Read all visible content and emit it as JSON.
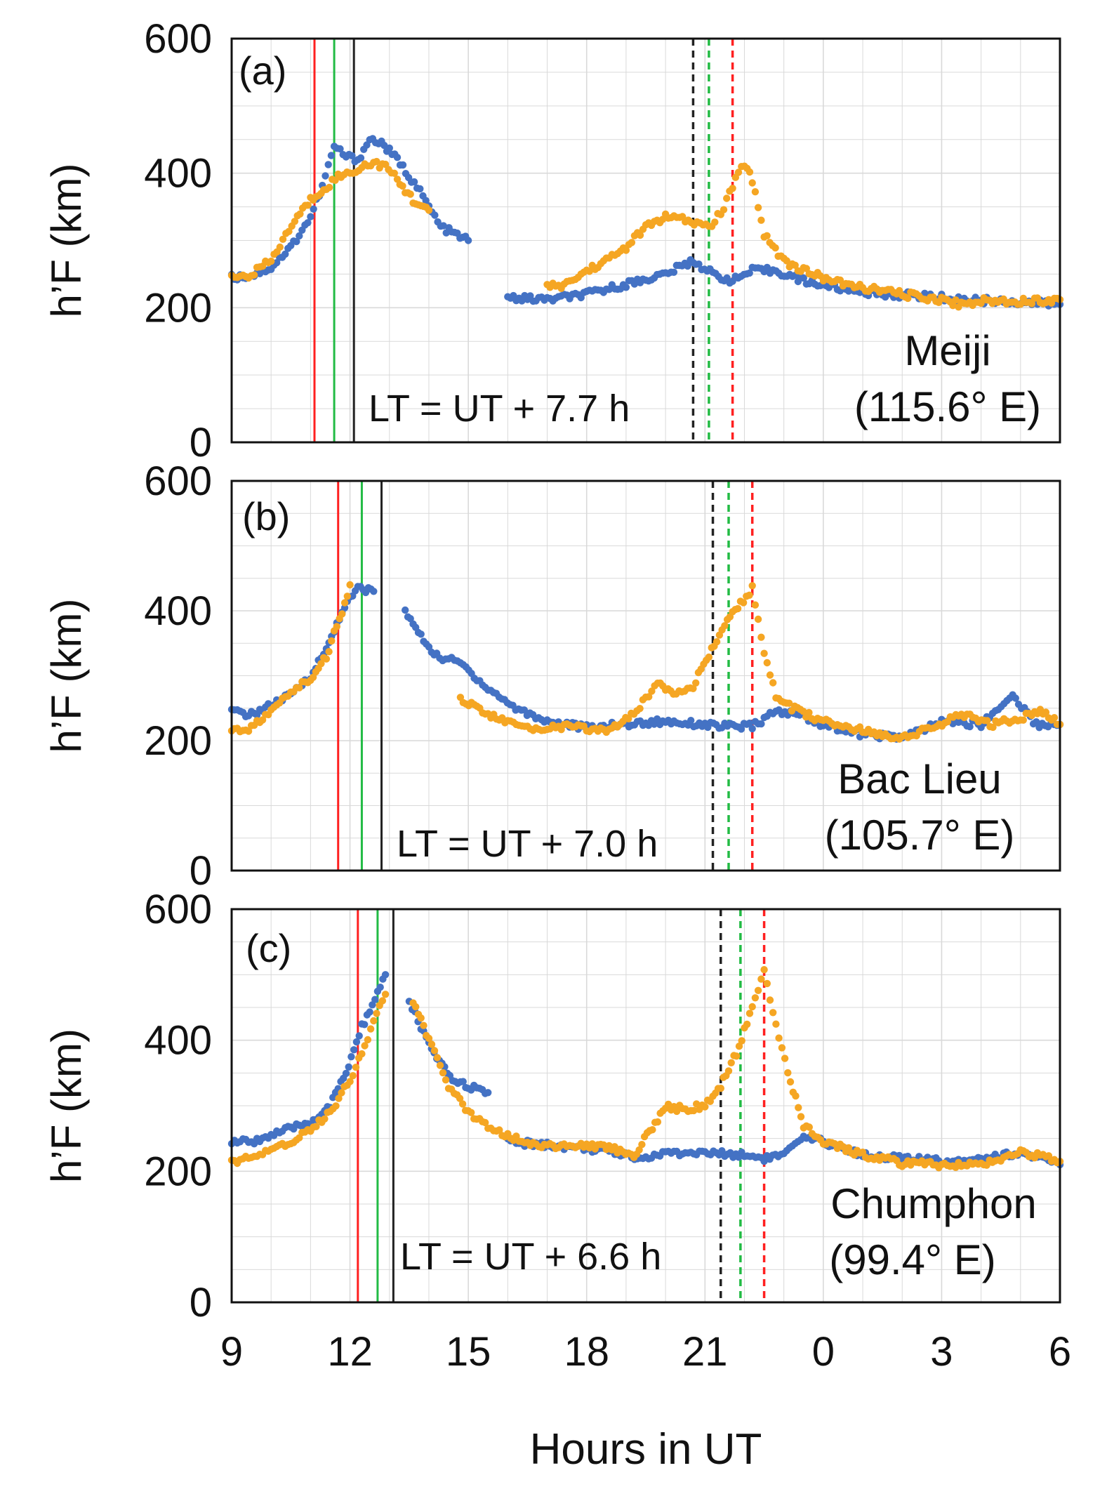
{
  "figure": {
    "xlabel": "Hours in UT",
    "x_tick_labels": [
      "9",
      "12",
      "15",
      "18",
      "21",
      "0",
      "3",
      "6"
    ],
    "colors": {
      "series1": "#4472c4",
      "series2": "#f5a623",
      "red_line": "#ff2020",
      "green_line": "#22bb44",
      "black_line": "#222222",
      "grid": "#d9d9d9",
      "frame": "#111111"
    }
  },
  "chart_data": [
    {
      "type": "scatter",
      "panel": "(a)",
      "station": "Meiji",
      "longitude": "(115.6° E)",
      "lt_note": "LT = UT + 7.7 h",
      "ylabel": "h’F (km)",
      "ylim": [
        0,
        600
      ],
      "xlim": [
        9,
        30
      ],
      "y_tick_labels": [
        "0",
        "200",
        "400",
        "600"
      ],
      "vlines_solid": [
        {
          "x": 11.1,
          "color": "red"
        },
        {
          "x": 11.6,
          "color": "green"
        },
        {
          "x": 12.1,
          "color": "black"
        }
      ],
      "vlines_dashed": [
        {
          "x": 20.7,
          "color": "black"
        },
        {
          "x": 21.1,
          "color": "green"
        },
        {
          "x": 21.7,
          "color": "red"
        }
      ],
      "series": [
        {
          "name": "blue",
          "color": "#4472c4",
          "segments": [
            [
              [
                9,
                245
              ],
              [
                9.5,
                248
              ],
              [
                10,
                260
              ],
              [
                10.5,
                290
              ],
              [
                11,
                335
              ],
              [
                11.3,
                380
              ],
              [
                11.6,
                440
              ],
              [
                11.9,
                425
              ],
              [
                12.2,
                420
              ],
              [
                12.5,
                450
              ],
              [
                12.8,
                445
              ],
              [
                13.2,
                420
              ],
              [
                13.7,
                380
              ],
              [
                14.3,
                320
              ],
              [
                15.0,
                300
              ]
            ],
            [
              [
                16.0,
                215
              ],
              [
                17,
                212
              ],
              [
                18,
                220
              ],
              [
                19,
                235
              ],
              [
                20,
                250
              ],
              [
                20.7,
                270
              ],
              [
                21.2,
                250
              ],
              [
                21.7,
                240
              ],
              [
                22.2,
                255
              ],
              [
                22.8,
                255
              ],
              [
                23.5,
                240
              ],
              [
                24.5,
                228
              ],
              [
                25.5,
                220
              ],
              [
                26.5,
                218
              ],
              [
                27.5,
                212
              ],
              [
                28.5,
                210
              ],
              [
                29,
                208
              ],
              [
                30,
                205
              ]
            ]
          ]
        },
        {
          "name": "orange",
          "color": "#f5a623",
          "segments": [
            [
              [
                9,
                245
              ],
              [
                9.5,
                250
              ],
              [
                10,
                270
              ],
              [
                10.3,
                300
              ],
              [
                10.6,
                330
              ],
              [
                11,
                360
              ],
              [
                11.4,
                380
              ],
              [
                11.7,
                395
              ],
              [
                12.0,
                400
              ],
              [
                12.3,
                410
              ],
              [
                12.6,
                415
              ],
              [
                12.9,
                410
              ],
              [
                13.2,
                390
              ],
              [
                13.6,
                360
              ],
              [
                14.0,
                345
              ]
            ],
            [
              [
                17.0,
                230
              ],
              [
                17.5,
                235
              ],
              [
                18,
                255
              ],
              [
                18.5,
                270
              ],
              [
                19,
                290
              ],
              [
                19.5,
                320
              ],
              [
                20,
                335
              ],
              [
                20.5,
                330
              ],
              [
                20.8,
                325
              ],
              [
                21.1,
                320
              ],
              [
                21.4,
                340
              ],
              [
                21.7,
                380
              ],
              [
                22.0,
                415
              ],
              [
                22.2,
                390
              ],
              [
                22.5,
                310
              ],
              [
                23,
                270
              ],
              [
                23.5,
                255
              ],
              [
                24,
                245
              ],
              [
                24.5,
                235
              ],
              [
                25,
                230
              ],
              [
                26,
                220
              ],
              [
                27,
                212
              ],
              [
                27.5,
                205
              ],
              [
                28,
                210
              ],
              [
                29,
                210
              ],
              [
                30,
                212
              ]
            ]
          ]
        }
      ]
    },
    {
      "type": "scatter",
      "panel": "(b)",
      "station": "Bac Lieu",
      "longitude": "(105.7° E)",
      "lt_note": "LT = UT + 7.0 h",
      "ylabel": "h’F (km)",
      "ylim": [
        0,
        600
      ],
      "xlim": [
        9,
        30
      ],
      "y_tick_labels": [
        "0",
        "200",
        "400",
        "600"
      ],
      "vlines_solid": [
        {
          "x": 11.7,
          "color": "red"
        },
        {
          "x": 12.3,
          "color": "green"
        },
        {
          "x": 12.8,
          "color": "black"
        }
      ],
      "vlines_dashed": [
        {
          "x": 21.2,
          "color": "black"
        },
        {
          "x": 21.6,
          "color": "green"
        },
        {
          "x": 22.2,
          "color": "red"
        }
      ],
      "series": [
        {
          "name": "blue",
          "color": "#4472c4",
          "segments": [
            [
              [
                9,
                245
              ],
              [
                9.5,
                240
              ],
              [
                10,
                255
              ],
              [
                10.5,
                270
              ],
              [
                11,
                300
              ],
              [
                11.4,
                340
              ],
              [
                11.8,
                400
              ],
              [
                12.2,
                435
              ],
              [
                12.6,
                430
              ]
            ],
            [
              [
                13.4,
                400
              ],
              [
                13.8,
                360
              ],
              [
                14.2,
                330
              ],
              [
                14.8,
                320
              ],
              [
                15.5,
                280
              ],
              [
                16.2,
                250
              ],
              [
                17,
                230
              ],
              [
                18,
                220
              ],
              [
                19,
                225
              ],
              [
                20,
                230
              ],
              [
                21,
                225
              ],
              [
                21.5,
                222
              ],
              [
                22.2,
                222
              ],
              [
                22.8,
                245
              ],
              [
                23.4,
                240
              ],
              [
                24,
                225
              ],
              [
                25,
                210
              ],
              [
                26,
                205
              ],
              [
                26.5,
                215
              ],
              [
                27,
                230
              ],
              [
                28,
                225
              ],
              [
                28.8,
                270
              ],
              [
                29.4,
                225
              ],
              [
                30,
                225
              ]
            ]
          ]
        },
        {
          "name": "orange",
          "color": "#f5a623",
          "segments": [
            [
              [
                9,
                215
              ],
              [
                9.5,
                220
              ],
              [
                10,
                245
              ],
              [
                10.5,
                275
              ],
              [
                11,
                295
              ],
              [
                11.4,
                330
              ],
              [
                11.8,
                400
              ],
              [
                12.0,
                440
              ]
            ],
            [
              [
                14.8,
                265
              ],
              [
                15.5,
                240
              ],
              [
                16.5,
                218
              ],
              [
                17.5,
                222
              ],
              [
                18.5,
                215
              ],
              [
                19.2,
                240
              ],
              [
                19.8,
                290
              ],
              [
                20.2,
                275
              ],
              [
                20.7,
                285
              ],
              [
                21.1,
                330
              ],
              [
                21.5,
                380
              ],
              [
                21.9,
                410
              ],
              [
                22.2,
                435
              ],
              [
                22.5,
                330
              ],
              [
                22.8,
                270
              ],
              [
                23.2,
                250
              ],
              [
                24,
                230
              ],
              [
                25,
                215
              ],
              [
                26,
                205
              ],
              [
                26.8,
                220
              ],
              [
                27.5,
                240
              ],
              [
                28.3,
                225
              ],
              [
                29,
                235
              ],
              [
                29.5,
                245
              ],
              [
                30,
                225
              ]
            ]
          ]
        }
      ]
    },
    {
      "type": "scatter",
      "panel": "(c)",
      "station": "Chumphon",
      "longitude": "(99.4° E)",
      "lt_note": "LT = UT + 6.6 h",
      "ylabel": "h’F (km)",
      "ylim": [
        0,
        600
      ],
      "xlim": [
        9,
        30
      ],
      "y_tick_labels": [
        "0",
        "200",
        "400",
        "600"
      ],
      "vlines_solid": [
        {
          "x": 12.2,
          "color": "red"
        },
        {
          "x": 12.7,
          "color": "green"
        },
        {
          "x": 13.1,
          "color": "black"
        }
      ],
      "vlines_dashed": [
        {
          "x": 21.4,
          "color": "black"
        },
        {
          "x": 21.9,
          "color": "green"
        },
        {
          "x": 22.5,
          "color": "red"
        }
      ],
      "series": [
        {
          "name": "blue",
          "color": "#4472c4",
          "segments": [
            [
              [
                9,
                245
              ],
              [
                9.5,
                245
              ],
              [
                10,
                255
              ],
              [
                10.5,
                265
              ],
              [
                11,
                275
              ],
              [
                11.5,
                300
              ],
              [
                11.9,
                350
              ],
              [
                12.3,
                420
              ],
              [
                12.7,
                470
              ],
              [
                12.9,
                500
              ]
            ],
            [
              [
                13.5,
                460
              ],
              [
                13.8,
                420
              ],
              [
                14.2,
                370
              ],
              [
                14.6,
                340
              ],
              [
                15,
                330
              ],
              [
                15.5,
                320
              ]
            ],
            [
              [
                16,
                245
              ],
              [
                17,
                240
              ],
              [
                18,
                235
              ],
              [
                19,
                225
              ],
              [
                19.5,
                220
              ],
              [
                20,
                228
              ],
              [
                21,
                228
              ],
              [
                22,
                225
              ],
              [
                22.5,
                220
              ],
              [
                23,
                225
              ],
              [
                23.5,
                250
              ],
              [
                24,
                245
              ],
              [
                25,
                225
              ],
              [
                26,
                220
              ],
              [
                27,
                215
              ],
              [
                28,
                220
              ],
              [
                29,
                228
              ],
              [
                30,
                210
              ]
            ]
          ]
        },
        {
          "name": "orange",
          "color": "#f5a623",
          "segments": [
            [
              [
                9,
                215
              ],
              [
                9.5,
                220
              ],
              [
                10,
                230
              ],
              [
                10.5,
                245
              ],
              [
                11,
                265
              ],
              [
                11.5,
                290
              ],
              [
                12,
                340
              ],
              [
                12.3,
                380
              ],
              [
                12.6,
                430
              ],
              [
                12.9,
                470
              ]
            ],
            [
              [
                13.6,
                460
              ],
              [
                14,
                400
              ],
              [
                14.5,
                330
              ],
              [
                15,
                290
              ],
              [
                15.5,
                270
              ],
              [
                16,
                255
              ],
              [
                16.5,
                242
              ],
              [
                17.5,
                238
              ],
              [
                18.5,
                238
              ],
              [
                19.2,
                225
              ],
              [
                19.6,
                260
              ],
              [
                20,
                298
              ],
              [
                20.5,
                295
              ],
              [
                21,
                300
              ],
              [
                21.4,
                330
              ],
              [
                21.8,
                380
              ],
              [
                22.2,
                450
              ],
              [
                22.5,
                510
              ],
              [
                22.8,
                420
              ],
              [
                23.1,
                350
              ],
              [
                23.5,
                270
              ],
              [
                24,
                245
              ],
              [
                25,
                225
              ],
              [
                25.5,
                220
              ],
              [
                26,
                212
              ],
              [
                27,
                210
              ],
              [
                28,
                210
              ],
              [
                29,
                230
              ],
              [
                30,
                215
              ]
            ]
          ]
        }
      ]
    }
  ]
}
